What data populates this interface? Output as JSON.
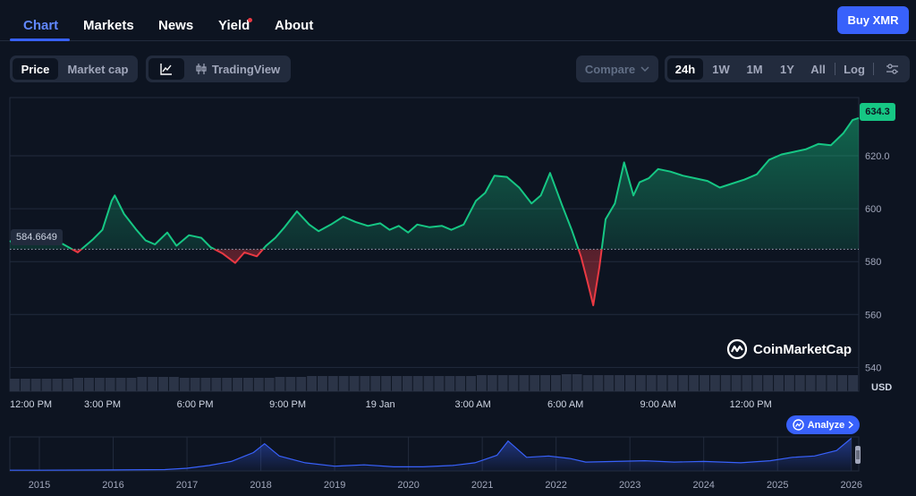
{
  "nav": {
    "tabs": [
      {
        "label": "Chart",
        "active": true
      },
      {
        "label": "Markets"
      },
      {
        "label": "News"
      },
      {
        "label": "Yield"
      },
      {
        "label": "About"
      }
    ],
    "buy_label": "Buy XMR"
  },
  "toolbar": {
    "metric": [
      "Price",
      "Market cap"
    ],
    "chart_style_label": "TradingView",
    "compare_label": "Compare",
    "ranges": [
      "24h",
      "1W",
      "1M",
      "1Y",
      "All"
    ],
    "log_label": "Log",
    "active_range": "24h"
  },
  "chart_data": {
    "type": "line",
    "y_axis_labels": [
      "620.0",
      "600",
      "580",
      "560",
      "540"
    ],
    "y_ticks": [
      620,
      600,
      580,
      560,
      540
    ],
    "ylim": [
      531,
      642
    ],
    "x_tick_labels": [
      "12:00 PM",
      "3:00 PM",
      "6:00 PM",
      "9:00 PM",
      "19 Jan",
      "3:00 AM",
      "6:00 AM",
      "9:00 AM",
      "12:00 PM"
    ],
    "y_unit": "USD",
    "open_price": 584.6649,
    "open_price_label": "584.6649",
    "current_price": 634.3,
    "current_price_label": "634.3",
    "price_series": [
      [
        0,
        587.5
      ],
      [
        0.3,
        589.5
      ],
      [
        0.6,
        587.2
      ],
      [
        1.1,
        588.5
      ],
      [
        1.6,
        587.4
      ],
      [
        2.2,
        583.5
      ],
      [
        2.7,
        588.5
      ],
      [
        3.0,
        592.0
      ],
      [
        3.3,
        603.0
      ],
      [
        3.4,
        605.0
      ],
      [
        3.7,
        598.0
      ],
      [
        4.1,
        592.0
      ],
      [
        4.4,
        588.0
      ],
      [
        4.7,
        586.5
      ],
      [
        5.1,
        591.0
      ],
      [
        5.4,
        586.0
      ],
      [
        5.8,
        590.0
      ],
      [
        6.2,
        589.0
      ],
      [
        6.5,
        585.5
      ],
      [
        6.9,
        583.0
      ],
      [
        7.3,
        579.5
      ],
      [
        7.6,
        583.5
      ],
      [
        8.0,
        582.0
      ],
      [
        8.3,
        586.0
      ],
      [
        8.6,
        589.0
      ],
      [
        8.9,
        593.0
      ],
      [
        9.3,
        599.0
      ],
      [
        9.7,
        594.0
      ],
      [
        10.0,
        591.5
      ],
      [
        10.4,
        594.0
      ],
      [
        10.8,
        597.0
      ],
      [
        11.2,
        595.0
      ],
      [
        11.6,
        593.5
      ],
      [
        12.0,
        594.5
      ],
      [
        12.3,
        592.0
      ],
      [
        12.6,
        593.5
      ],
      [
        12.9,
        591.0
      ],
      [
        13.2,
        594.0
      ],
      [
        13.6,
        593.0
      ],
      [
        14.0,
        593.5
      ],
      [
        14.3,
        592.0
      ],
      [
        14.7,
        594.0
      ],
      [
        15.1,
        603.0
      ],
      [
        15.4,
        606.0
      ],
      [
        15.7,
        612.5
      ],
      [
        16.1,
        612.0
      ],
      [
        16.5,
        608.0
      ],
      [
        16.9,
        602.0
      ],
      [
        17.2,
        605.0
      ],
      [
        17.5,
        613.5
      ],
      [
        17.9,
        601.0
      ],
      [
        18.2,
        592.0
      ],
      [
        18.5,
        582.0
      ],
      [
        18.7,
        573.0
      ],
      [
        18.9,
        563.5
      ],
      [
        19.1,
        578.0
      ],
      [
        19.3,
        596.0
      ],
      [
        19.6,
        602.0
      ],
      [
        19.9,
        617.5
      ],
      [
        20.2,
        605.0
      ],
      [
        20.4,
        610.0
      ],
      [
        20.7,
        611.5
      ],
      [
        21.0,
        615.0
      ],
      [
        21.4,
        614.0
      ],
      [
        21.8,
        612.5
      ],
      [
        22.2,
        611.5
      ],
      [
        22.6,
        610.5
      ],
      [
        23.0,
        608.0
      ],
      [
        23.4,
        609.5
      ],
      [
        23.8,
        611.0
      ],
      [
        24.2,
        613.0
      ],
      [
        24.6,
        618.5
      ],
      [
        25.0,
        620.5
      ],
      [
        25.4,
        621.5
      ],
      [
        25.8,
        622.5
      ],
      [
        26.2,
        624.5
      ],
      [
        26.6,
        624.0
      ],
      [
        27.0,
        628.5
      ],
      [
        27.3,
        633.5
      ],
      [
        27.5,
        634.3
      ]
    ],
    "volume_series": [
      14,
      14,
      14,
      14,
      14,
      14,
      15,
      15,
      15,
      15,
      15,
      15,
      16,
      16,
      16,
      16,
      15,
      15,
      15,
      15,
      15,
      15,
      15,
      15,
      15,
      16,
      16,
      16,
      17,
      17,
      17,
      17,
      17,
      17,
      17,
      17,
      17,
      17,
      17,
      17,
      17,
      17,
      17,
      17,
      18,
      18,
      18,
      18,
      18,
      18,
      18,
      18,
      19,
      19,
      18,
      18,
      18,
      18,
      18,
      18,
      18,
      18,
      18,
      18,
      18,
      18,
      18,
      18,
      18,
      18,
      18,
      18,
      18,
      18,
      18,
      18,
      18,
      18,
      18,
      18
    ],
    "watermark": "CoinMarketCap",
    "navigator": {
      "year_labels": [
        "2015",
        "2016",
        "2017",
        "2018",
        "2019",
        "2020",
        "2021",
        "2022",
        "2023",
        "2024",
        "2025",
        "2026"
      ],
      "series": [
        [
          2014.6,
          1
        ],
        [
          2015,
          1
        ],
        [
          2016,
          1.5
        ],
        [
          2016.7,
          2
        ],
        [
          2017,
          4
        ],
        [
          2017.3,
          8
        ],
        [
          2017.6,
          14
        ],
        [
          2017.9,
          27
        ],
        [
          2018.05,
          40
        ],
        [
          2018.25,
          22
        ],
        [
          2018.6,
          12
        ],
        [
          2019.0,
          7
        ],
        [
          2019.4,
          9
        ],
        [
          2019.8,
          6
        ],
        [
          2020.2,
          6
        ],
        [
          2020.6,
          8
        ],
        [
          2020.9,
          12
        ],
        [
          2021.2,
          23
        ],
        [
          2021.35,
          44
        ],
        [
          2021.6,
          20
        ],
        [
          2021.9,
          22
        ],
        [
          2022.2,
          18
        ],
        [
          2022.4,
          13
        ],
        [
          2022.8,
          14
        ],
        [
          2023.2,
          15
        ],
        [
          2023.6,
          13
        ],
        [
          2024.0,
          14
        ],
        [
          2024.5,
          12
        ],
        [
          2024.9,
          15
        ],
        [
          2025.2,
          20
        ],
        [
          2025.5,
          22
        ],
        [
          2025.8,
          30
        ],
        [
          2026.0,
          48
        ]
      ]
    }
  },
  "analyze_label": "Analyze",
  "colors": {
    "up": "#16c784",
    "down": "#ea3943",
    "accent": "#3861fb"
  },
  "icons": [
    "line-chart-icon",
    "candlestick-icon",
    "chevron-down-icon",
    "settings-sliders-icon",
    "coinmarketcap-logo-icon",
    "analyze-icon",
    "chevron-right-icon",
    "drag-handle-icon"
  ]
}
